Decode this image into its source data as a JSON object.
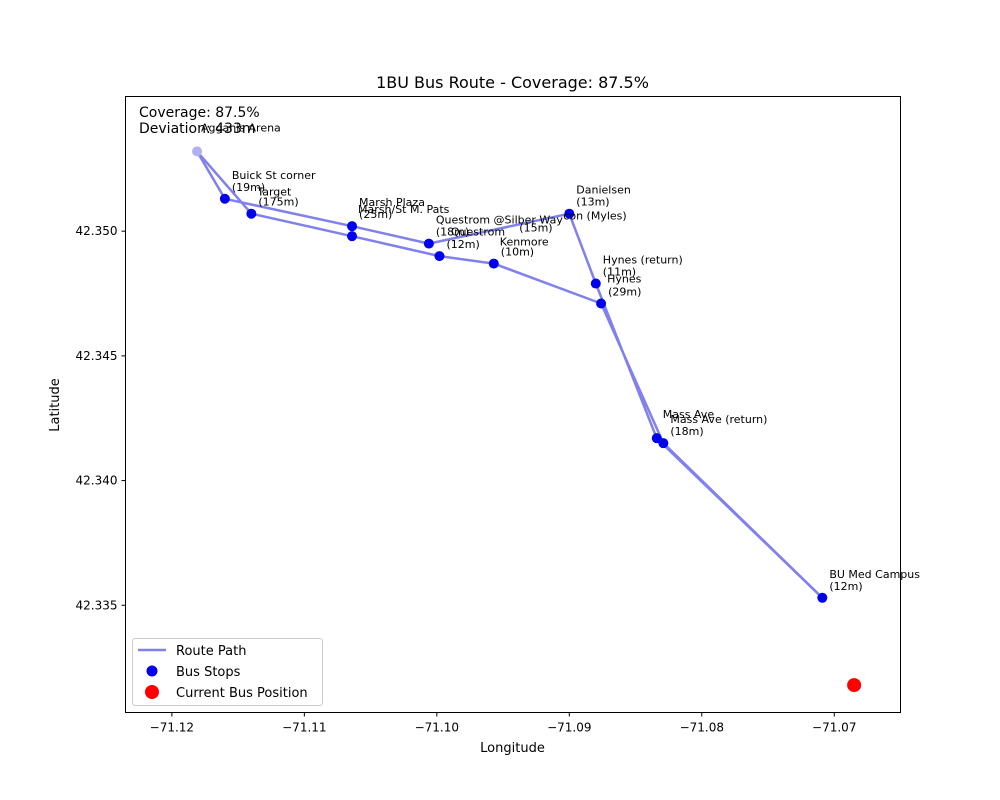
{
  "chart_data": {
    "type": "scatter",
    "title": "1BU Bus Route - Coverage: 87.5%",
    "xlabel": "Longitude",
    "ylabel": "Latitude",
    "xlim": [
      -71.1235,
      -71.065
    ],
    "ylim": [
      42.3307,
      42.3554
    ],
    "x_ticks": [
      -71.12,
      -71.11,
      -71.1,
      -71.09,
      -71.08,
      -71.07
    ],
    "x_tick_labels": [
      "−71.12",
      "−71.11",
      "−71.10",
      "−71.09",
      "−71.08",
      "−71.07"
    ],
    "y_ticks": [
      42.335,
      42.34,
      42.345,
      42.35
    ],
    "y_tick_labels": [
      "42.335",
      "42.340",
      "42.345",
      "42.350"
    ],
    "info_lines": [
      "Coverage: 87.5%",
      "Deviation: 433m"
    ],
    "route_path": {
      "name": "Route Path",
      "color": "#8080ee",
      "points": [
        [
          -71.1181,
          42.3532
        ],
        [
          -71.116,
          42.3513
        ],
        [
          -71.1064,
          42.3502
        ],
        [
          -71.1006,
          42.3495
        ],
        [
          -71.09,
          42.3507
        ],
        [
          -71.088,
          42.3479
        ],
        [
          -71.0834,
          42.3417
        ],
        [
          -71.0709,
          42.3353
        ],
        [
          -71.0829,
          42.3415
        ],
        [
          -71.0876,
          42.3471
        ],
        [
          -71.0957,
          42.3487
        ],
        [
          -71.0998,
          42.349
        ],
        [
          -71.1064,
          42.3498
        ],
        [
          -71.114,
          42.3507
        ],
        [
          -71.1181,
          42.3532
        ]
      ]
    },
    "bus_stops": {
      "name": "Bus Stops",
      "color": "#0000ee",
      "points": [
        {
          "x": -71.116,
          "y": 42.3513,
          "label": "Buick St corner\n(19m)",
          "faded": false
        },
        {
          "x": -71.114,
          "y": 42.3507,
          "label": "(175m)",
          "faded": false
        },
        {
          "x": -71.1064,
          "y": 42.3502,
          "label": "Marsh Plaza\n(25m)",
          "faded": false
        },
        {
          "x": -71.1064,
          "y": 42.3498,
          "label": "",
          "faded": false
        },
        {
          "x": -71.1006,
          "y": 42.3495,
          "label": "Questrom @Silber Way\n(18m)",
          "faded": false
        },
        {
          "x": -71.0998,
          "y": 42.349,
          "label": "(12m)",
          "faded": false
        },
        {
          "x": -71.0957,
          "y": 42.3487,
          "label": "(10m)",
          "faded": false
        },
        {
          "x": -71.088,
          "y": 42.3479,
          "label": "Hynes (return)\n(11m)",
          "faded": false
        },
        {
          "x": -71.0876,
          "y": 42.3471,
          "label": "(29m)",
          "faded": false
        },
        {
          "x": -71.0834,
          "y": 42.3417,
          "label": "",
          "faded": false
        },
        {
          "x": -71.0829,
          "y": 42.3415,
          "label": "Mass Ave (return)\n(18m)",
          "faded": false
        },
        {
          "x": -71.0709,
          "y": 42.3353,
          "label": "BU Med Campus\n(12m)",
          "faded": false
        },
        {
          "x": -71.09,
          "y": 42.3507,
          "label": "Danielsen\n(13m)",
          "faded": false
        },
        {
          "x": -71.1181,
          "y": 42.3532,
          "label": "",
          "faded": true
        }
      ]
    },
    "extra_labels": [
      {
        "x": -71.114,
        "y": 42.3507,
        "text": "Target",
        "dx": 6,
        "dy": -18,
        "faded": true
      },
      {
        "x": -71.1006,
        "y": 42.3495,
        "text": "Questrom",
        "dx": 22,
        "dy": -8,
        "faded": true
      },
      {
        "x": -71.0957,
        "y": 42.3487,
        "text": "Kenmore",
        "dx": 6,
        "dy": -18,
        "faded": true
      },
      {
        "x": -71.09,
        "y": 42.3507,
        "text": "con (Myles)",
        "dx": -6,
        "dy": 6,
        "faded": false
      },
      {
        "x": -71.09,
        "y": 42.3507,
        "text": "(15m)",
        "dx": -50,
        "dy": 18,
        "faded": true
      },
      {
        "x": -71.0876,
        "y": 42.3471,
        "text": "Hynes",
        "dx": 6,
        "dy": -21,
        "faded": false
      },
      {
        "x": -71.0834,
        "y": 42.3417,
        "text": "Mass Ave",
        "dx": 6,
        "dy": -20,
        "faded": true
      },
      {
        "x": -71.1064,
        "y": 42.3502,
        "text": "Marsh/St M. Pats",
        "dx": 6,
        "dy": -13,
        "faded": true
      },
      {
        "x": -71.1181,
        "y": 42.3532,
        "text": "Agganis Arena",
        "dx": 4,
        "dy": -20,
        "faded": true
      }
    ],
    "current_position": {
      "name": "Current Bus Position",
      "color": "#ff0000",
      "x": -71.0685,
      "y": 42.3318
    },
    "legend": {
      "placement": "lower-left",
      "entries": [
        "Route Path",
        "Bus Stops",
        "Current Bus Position"
      ]
    },
    "grid": false
  }
}
